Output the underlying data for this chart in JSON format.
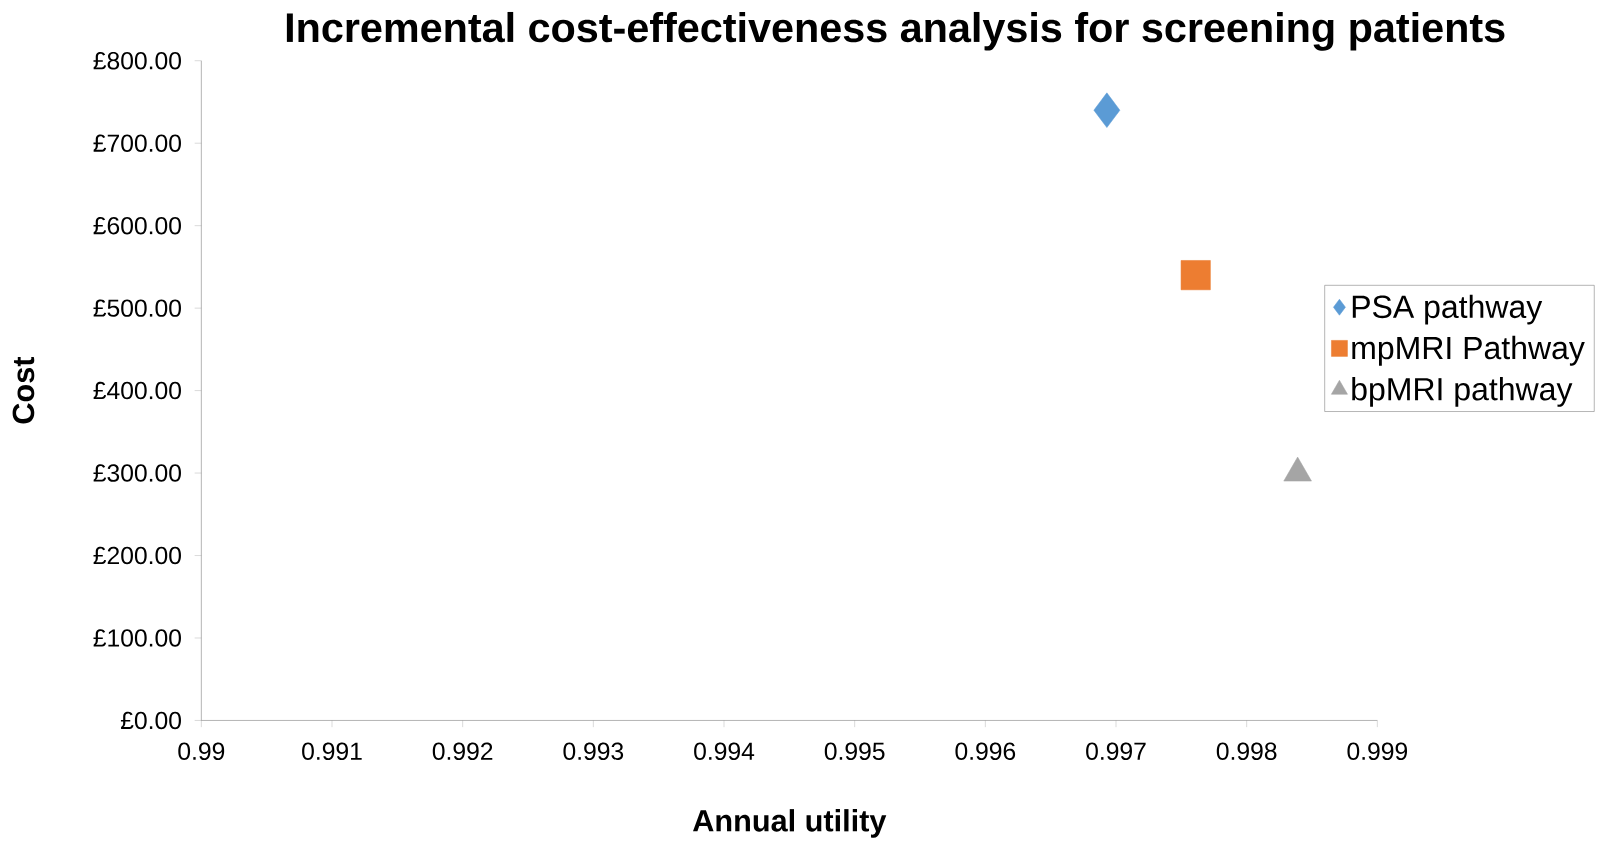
{
  "chart_data": {
    "type": "scatter",
    "title": "Incremental cost-effectiveness analysis for screening patients",
    "xlabel": "Annual utility",
    "ylabel": "Cost",
    "xlim": [
      0.99,
      0.999
    ],
    "xticks": [
      0.99,
      0.991,
      0.992,
      0.993,
      0.994,
      0.995,
      0.996,
      0.997,
      0.998,
      0.999
    ],
    "ylim": [
      0,
      800
    ],
    "yticks": [
      {
        "value": 0,
        "label": "£0.00"
      },
      {
        "value": 100,
        "label": "£100.00"
      },
      {
        "value": 200,
        "label": "£200.00"
      },
      {
        "value": 300,
        "label": "£300.00"
      },
      {
        "value": 400,
        "label": "£400.00"
      },
      {
        "value": 500,
        "label": "£500.00"
      },
      {
        "value": 600,
        "label": "£600.00"
      },
      {
        "value": 700,
        "label": "£700.00"
      },
      {
        "value": 800,
        "label": "£800.00"
      }
    ],
    "grid": false,
    "legend": "right",
    "series": [
      {
        "name": "PSA pathway",
        "color": "#5b9bd5",
        "marker": "diamond",
        "x": [
          0.99693
        ],
        "values": [
          740
        ]
      },
      {
        "name": "mpMRI Pathway",
        "color": "#ed7d31",
        "marker": "square",
        "x": [
          0.99761
        ],
        "values": [
          540
        ]
      },
      {
        "name": "bpMRI pathway",
        "color": "#a5a5a5",
        "marker": "triangle",
        "x": [
          0.99839
        ],
        "values": [
          300
        ]
      }
    ]
  }
}
